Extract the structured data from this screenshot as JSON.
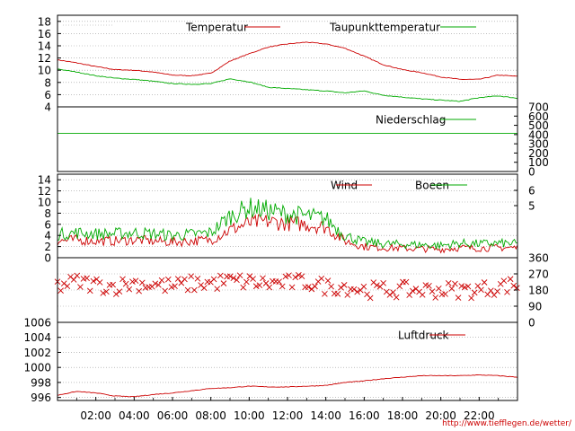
{
  "footer": {
    "credit": "http://www.tiefflegen.de/wetter/"
  },
  "colors": {
    "red": "#cc0000",
    "green": "#00aa00",
    "grid": "#9a9a9a",
    "frame": "#000000"
  },
  "chart_data": {
    "type": "line",
    "x_ticks": [
      "02:00",
      "04:00",
      "06:00",
      "08:00",
      "10:00",
      "12:00",
      "14:00",
      "16:00",
      "18:00",
      "20:00",
      "22:00"
    ],
    "x_range_hours": [
      0,
      24
    ],
    "panels": [
      {
        "id": "temperature",
        "left_ticks": [
          "4",
          "6",
          "8",
          "10",
          "12",
          "14",
          "16",
          "18"
        ],
        "ylim": [
          4,
          19
        ],
        "grid": true,
        "series": [
          {
            "name": "Temperatur",
            "color": "#cc0000",
            "x": [
              0,
              1,
              2,
              3,
              4,
              5,
              6,
              7,
              8,
              9,
              10,
              11,
              12,
              13,
              14,
              15,
              16,
              17,
              18,
              19,
              20,
              21,
              22,
              23,
              24
            ],
            "values": [
              11.7,
              11.2,
              10.6,
              10.1,
              10.0,
              9.7,
              9.2,
              9.1,
              9.5,
              11.5,
              12.7,
              13.8,
              14.3,
              14.6,
              14.3,
              13.6,
              12.3,
              10.9,
              10.1,
              9.6,
              8.9,
              8.5,
              8.5,
              9.2,
              9.0
            ]
          },
          {
            "name": "Taupunkttemperatur",
            "color": "#00aa00",
            "x": [
              0,
              1,
              2,
              3,
              4,
              5,
              6,
              7,
              8,
              9,
              10,
              11,
              12,
              13,
              14,
              15,
              16,
              17,
              18,
              19,
              20,
              21,
              22,
              23,
              24
            ],
            "values": [
              10.2,
              9.7,
              9.1,
              8.7,
              8.5,
              8.2,
              7.8,
              7.7,
              7.8,
              8.6,
              8.1,
              7.2,
              7.0,
              6.8,
              6.6,
              6.3,
              6.6,
              5.9,
              5.6,
              5.3,
              5.1,
              4.9,
              5.5,
              5.8,
              5.4
            ]
          }
        ]
      },
      {
        "id": "precipitation",
        "right_ticks": [
          "100",
          "200",
          "300",
          "400",
          "500",
          "600",
          "700"
        ],
        "ylim": [
          0,
          700
        ],
        "grid": false,
        "series": [
          {
            "name": "Niederschlag",
            "color": "#00aa00",
            "x": [
              0,
              24
            ],
            "values": [
              414,
              414
            ]
          }
        ]
      },
      {
        "id": "wind",
        "left_ticks": [
          "0",
          "2",
          "4",
          "6",
          "8",
          "10",
          "12",
          "14"
        ],
        "right_ticks": [
          "0",
          "5",
          "6"
        ],
        "ylim": [
          0,
          15
        ],
        "grid": true,
        "series": [
          {
            "name": "Wind",
            "color": "#cc0000",
            "x": [
              0,
              1,
              2,
              3,
              4,
              5,
              6,
              7,
              8,
              9,
              10,
              11,
              12,
              13,
              14,
              15,
              16,
              17,
              18,
              19,
              20,
              21,
              22,
              23,
              24
            ],
            "values": [
              3.0,
              3.2,
              3.0,
              3.0,
              3.2,
              3.0,
              2.8,
              3.0,
              3.2,
              5.0,
              6.2,
              6.5,
              6.2,
              6.0,
              5.5,
              3.0,
              2.0,
              1.8,
              1.7,
              1.6,
              1.5,
              1.8,
              1.7,
              1.8,
              1.8
            ]
          },
          {
            "name": "Boeen",
            "color": "#00aa00",
            "x": [
              0,
              1,
              2,
              3,
              4,
              5,
              6,
              7,
              8,
              9,
              10,
              11,
              12,
              13,
              14,
              15,
              16,
              17,
              18,
              19,
              20,
              21,
              22,
              23,
              24
            ],
            "values": [
              4.2,
              4.5,
              4.3,
              4.3,
              4.5,
              4.3,
              4.0,
              4.2,
              4.5,
              7.5,
              9.0,
              8.5,
              7.8,
              7.5,
              7.0,
              4.0,
              2.8,
              2.5,
              2.4,
              2.3,
              2.2,
              2.6,
              2.5,
              2.6,
              2.5
            ]
          }
        ]
      },
      {
        "id": "wind-direction",
        "right_ticks": [
          "0",
          "90",
          "180",
          "270",
          "360"
        ],
        "ylim": [
          0,
          360
        ],
        "grid": true,
        "series": [
          {
            "name": "",
            "color": "#cc0000",
            "marker": "x",
            "x": [
              0,
              1,
              2,
              3,
              4,
              5,
              6,
              7,
              8,
              9,
              10,
              11,
              12,
              13,
              14,
              15,
              16,
              17,
              18,
              19,
              20,
              21,
              22,
              23,
              24
            ],
            "values": [
              200,
              225,
              210,
              200,
              220,
              210,
              200,
              215,
              220,
              230,
              225,
              215,
              220,
              225,
              200,
              200,
              180,
              180,
              180,
              180,
              180,
              180,
              180,
              200,
              210
            ]
          }
        ]
      },
      {
        "id": "pressure",
        "left_ticks": [
          "996",
          "998",
          "1000",
          "1002",
          "1004",
          "1006"
        ],
        "ylim": [
          995.6,
          1006
        ],
        "grid": true,
        "series": [
          {
            "name": "Luftdruck",
            "color": "#cc0000",
            "x": [
              0,
              1,
              2,
              3,
              4,
              5,
              6,
              7,
              8,
              9,
              10,
              11,
              12,
              13,
              14,
              15,
              16,
              17,
              18,
              19,
              20,
              21,
              22,
              23,
              24
            ],
            "values": [
              996.3,
              996.8,
              996.6,
              996.2,
              996.1,
              996.4,
              996.6,
              996.9,
              997.2,
              997.3,
              997.5,
              997.4,
              997.4,
              997.5,
              997.6,
              998.0,
              998.2,
              998.5,
              998.7,
              998.9,
              998.9,
              998.9,
              999.0,
              998.9,
              998.7
            ]
          }
        ]
      }
    ]
  }
}
